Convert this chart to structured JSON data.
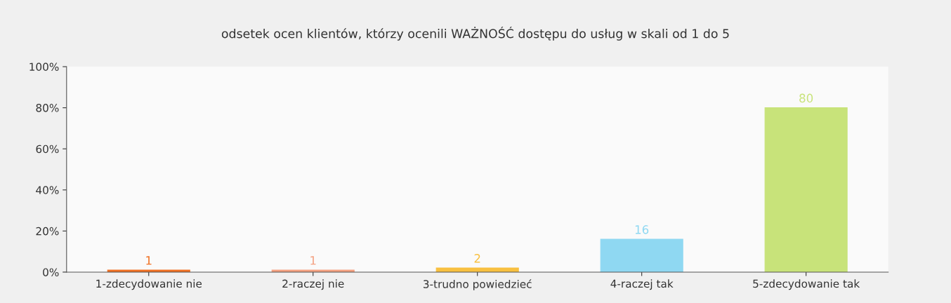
{
  "chart_data": {
    "type": "bar",
    "title": "odsetek ocen klientów, którzy ocenili WAŻNOŚĆ dostępu do usług w skali od 1 do 5",
    "categories": [
      "1-zdecydowanie nie",
      "2-raczej nie",
      "3-trudno powiedzieć",
      "4-raczej tak",
      "5-zdecydowanie tak"
    ],
    "values": [
      1,
      1,
      2,
      16,
      80
    ],
    "colors": [
      "#f07022",
      "#f4a080",
      "#f8c040",
      "#8fd8f2",
      "#c8e37a"
    ],
    "ylim": [
      0,
      100
    ],
    "yticks": [
      {
        "value": 0,
        "label": "0%"
      },
      {
        "value": 20,
        "label": "20%"
      },
      {
        "value": 40,
        "label": "40%"
      },
      {
        "value": 60,
        "label": "60%"
      },
      {
        "value": 80,
        "label": "80%"
      },
      {
        "value": 100,
        "label": "100%"
      }
    ],
    "data_labels": true,
    "grid": false
  }
}
